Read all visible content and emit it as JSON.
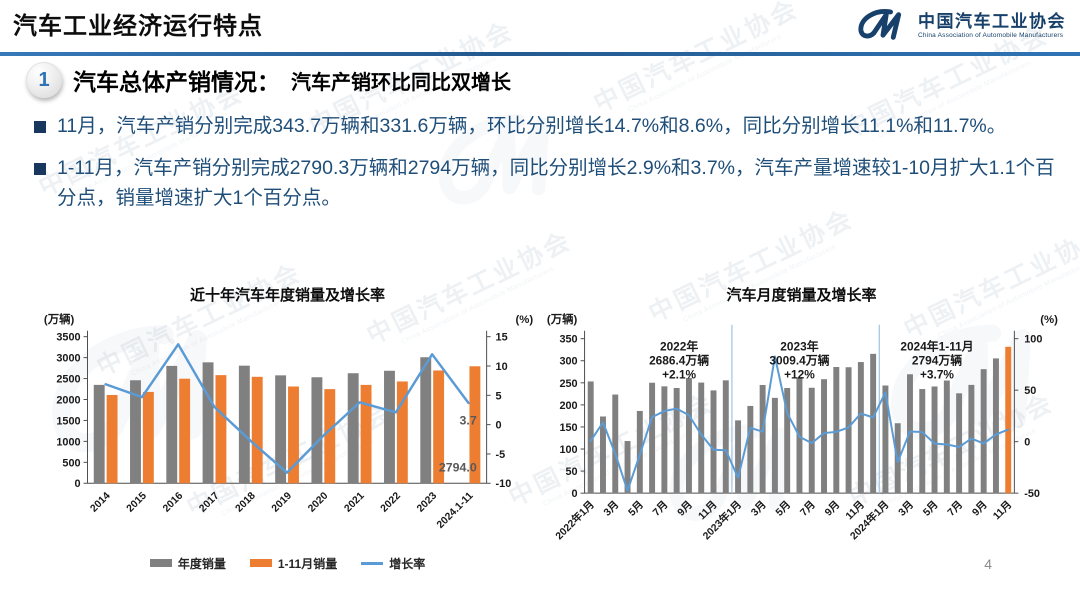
{
  "header": {
    "title": "汽车工业经济运行特点",
    "logo": {
      "org_cn": "中国汽车工业协会",
      "org_en": "China Association of Automobile Manufacturers"
    }
  },
  "section": {
    "number": "1",
    "title": "汽车总体产销情况：",
    "subtitle": "汽车产销环比同比双增长"
  },
  "bullets": [
    "11月，汽车产销分别完成343.7万辆和331.6万辆，环比分别增长14.7%和8.6%，同比分别增长11.1%和11.7%。",
    "1-11月，汽车产销分别完成2790.3万辆和2794万辆，同比分别增长2.9%和3.7%，汽车产量增速较1-10月扩大1.1个百分点，销量增速扩大1个百分点。"
  ],
  "page_number": "4",
  "watermark": {
    "cn": "中国汽车工业协会",
    "en": "China Association of Automobile Manufacturers"
  },
  "colors": {
    "accent_blue": "#2E74B5",
    "dark_blue": "#1F4E79",
    "text_blue": "#1F4E79",
    "bar_gray": "#808080",
    "bar_orange": "#ED7D31",
    "line_blue": "#5B9BD5",
    "separator_blue": "#9DC3E6"
  },
  "chart_data": [
    {
      "type": "bar",
      "title": "近十年汽车年度销量及增长率",
      "left_axis_label": "(万辆)",
      "right_axis_label": "(%)",
      "left_ylim": [
        0,
        3500
      ],
      "left_yticks": [
        0,
        500,
        1000,
        1500,
        2000,
        2500,
        3000,
        3500
      ],
      "right_ylim": [
        -10,
        15
      ],
      "right_yticks": [
        -10,
        -5,
        0,
        5,
        10,
        15
      ],
      "grid": false,
      "legend_position": "bottom",
      "categories": [
        "2014",
        "2015",
        "2016",
        "2017",
        "2018",
        "2019",
        "2020",
        "2021",
        "2022",
        "2023",
        "2024.1-11"
      ],
      "series": [
        {
          "name": "年度销量",
          "type": "bar",
          "color": "#808080",
          "values": [
            2349.2,
            2459.8,
            2802.8,
            2887.9,
            2808.1,
            2576.9,
            2531.1,
            2627.5,
            2686.4,
            3009.4,
            null
          ]
        },
        {
          "name": "1-11月销量",
          "type": "bar",
          "color": "#ED7D31",
          "values": [
            2108.0,
            2181.0,
            2497.0,
            2582.0,
            2542.0,
            2311.0,
            2248.0,
            2348.9,
            2430.8,
            2693.8,
            2794.0
          ]
        },
        {
          "name": "增长率",
          "type": "line",
          "axis": "right",
          "color": "#5B9BD5",
          "values": [
            6.9,
            4.7,
            13.7,
            3.0,
            -2.8,
            -8.2,
            -1.9,
            3.8,
            2.1,
            12.0,
            3.7
          ]
        }
      ],
      "data_labels": [
        {
          "text": "3.7"
        },
        {
          "text": "2794.0"
        }
      ]
    },
    {
      "type": "bar",
      "title": "汽车月度销量及增长率",
      "left_axis_label": "(万辆)",
      "right_axis_label": "(%)",
      "left_ylim": [
        0,
        350
      ],
      "left_yticks": [
        0,
        50,
        100,
        150,
        200,
        250,
        300,
        350
      ],
      "right_ylim": [
        -50,
        100
      ],
      "right_yticks": [
        -50,
        0,
        50,
        100
      ],
      "grid": false,
      "legend_position": "none",
      "categories": [
        "2022年1月",
        "2月",
        "3月",
        "4月",
        "5月",
        "6月",
        "7月",
        "8月",
        "9月",
        "10月",
        "11月",
        "12月",
        "2023年1月",
        "2月",
        "3月",
        "4月",
        "5月",
        "6月",
        "7月",
        "8月",
        "9月",
        "10月",
        "11月",
        "12月",
        "2024年1月",
        "2月",
        "3月",
        "4月",
        "5月",
        "6月",
        "7月",
        "8月",
        "9月",
        "10月",
        "11月"
      ],
      "xtick_every": 2,
      "series": [
        {
          "name": "月度销量",
          "type": "bar",
          "color": "#808080",
          "highlight_last_color": "#ED7D31",
          "values": [
            253.1,
            173.7,
            223.4,
            118.1,
            186.2,
            250.2,
            242.0,
            238.3,
            261.0,
            250.5,
            232.8,
            255.6,
            164.9,
            197.6,
            245.1,
            215.9,
            238.2,
            262.2,
            238.8,
            258.2,
            285.8,
            285.3,
            297.0,
            315.6,
            243.9,
            158.4,
            269.4,
            235.9,
            241.7,
            255.2,
            226.2,
            245.3,
            280.9,
            305.3,
            331.6
          ]
        },
        {
          "name": "增长率",
          "type": "line",
          "axis": "right",
          "color": "#5B9BD5",
          "values": [
            0.9,
            18.7,
            -11.7,
            -47.6,
            -12.6,
            23.8,
            29.7,
            32.1,
            25.7,
            6.9,
            -7.9,
            -8.4,
            -35.0,
            13.5,
            9.7,
            82.7,
            27.9,
            4.8,
            -1.4,
            8.4,
            9.5,
            13.8,
            27.4,
            23.5,
            47.9,
            -19.9,
            9.9,
            9.3,
            -1.9,
            -2.7,
            -5.2,
            3.0,
            -1.7,
            7.0,
            11.7
          ]
        }
      ],
      "separators_after_index": [
        12,
        24
      ],
      "separator_color": "#9DC3E6",
      "annotations": [
        {
          "x_frac": 0.22,
          "lines": [
            "2022年",
            "2686.4万辆",
            "+2.1%"
          ]
        },
        {
          "x_frac": 0.5,
          "lines": [
            "2023年",
            "3009.4万辆",
            "+12%"
          ]
        },
        {
          "x_frac": 0.82,
          "lines": [
            "2024年1-11月",
            "2794万辆",
            "+3.7%"
          ]
        }
      ]
    }
  ]
}
